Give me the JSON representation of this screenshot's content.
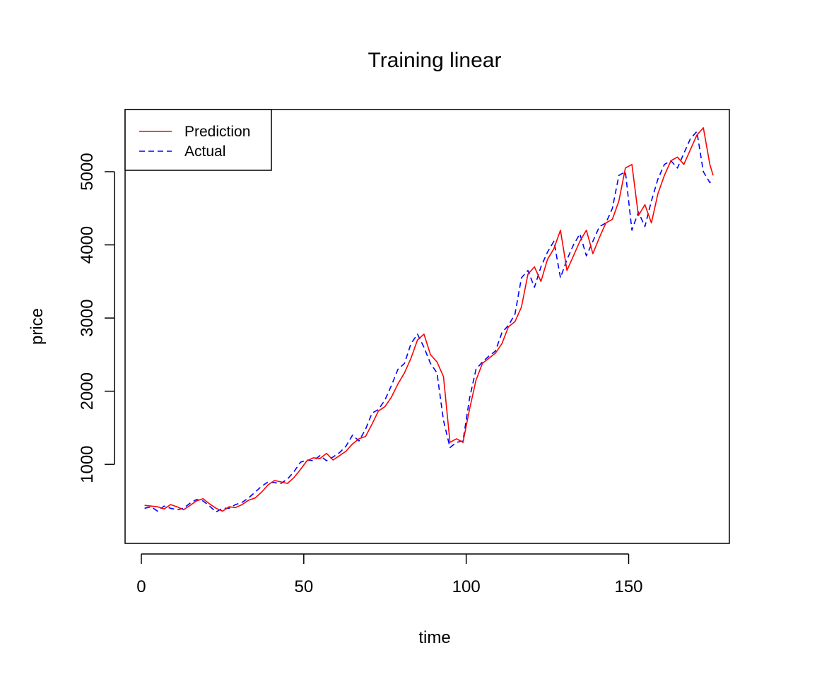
{
  "chart_data": {
    "type": "line",
    "title": "Training linear",
    "xlabel": "time",
    "ylabel": "price",
    "xlim": [
      -5,
      181
    ],
    "ylim": [
      -80,
      5850
    ],
    "xticks": [
      0,
      50,
      100,
      150
    ],
    "yticks": [
      1000,
      2000,
      3000,
      4000,
      5000
    ],
    "legend_position": "top-left",
    "grid": false,
    "series": [
      {
        "name": "Prediction",
        "color": "#ff0000",
        "style": "solid",
        "x": [
          1,
          3,
          5,
          7,
          9,
          11,
          13,
          15,
          17,
          19,
          21,
          23,
          25,
          27,
          29,
          31,
          33,
          35,
          37,
          39,
          41,
          43,
          45,
          47,
          49,
          51,
          53,
          55,
          57,
          59,
          61,
          63,
          65,
          67,
          69,
          71,
          73,
          75,
          77,
          79,
          81,
          83,
          85,
          87,
          89,
          91,
          93,
          95,
          97,
          99,
          101,
          103,
          105,
          107,
          109,
          111,
          113,
          115,
          117,
          119,
          121,
          123,
          125,
          127,
          129,
          131,
          133,
          135,
          137,
          139,
          141,
          143,
          145,
          147,
          149,
          151,
          153,
          155,
          157,
          159,
          161,
          163,
          165,
          167,
          169,
          171,
          173,
          175,
          176
        ],
        "values": [
          440,
          430,
          420,
          390,
          450,
          420,
          380,
          440,
          500,
          530,
          460,
          400,
          360,
          420,
          410,
          450,
          510,
          540,
          620,
          720,
          780,
          760,
          740,
          820,
          930,
          1050,
          1090,
          1080,
          1150,
          1060,
          1120,
          1180,
          1280,
          1350,
          1380,
          1550,
          1730,
          1790,
          1920,
          2100,
          2250,
          2450,
          2700,
          2780,
          2500,
          2400,
          2200,
          1300,
          1350,
          1300,
          1750,
          2150,
          2380,
          2450,
          2520,
          2650,
          2880,
          2950,
          3150,
          3600,
          3700,
          3500,
          3800,
          3950,
          4200,
          3650,
          3850,
          4050,
          4200,
          3880,
          4100,
          4300,
          4350,
          4600,
          5050,
          5100,
          4400,
          4550,
          4300,
          4700,
          4950,
          5150,
          5200,
          5100,
          5300,
          5500,
          5600,
          5100,
          4950
        ]
      },
      {
        "name": "Actual",
        "color": "#0000ff",
        "style": "dashed",
        "x": [
          1,
          3,
          5,
          7,
          9,
          11,
          13,
          15,
          17,
          19,
          21,
          23,
          25,
          27,
          29,
          31,
          33,
          35,
          37,
          39,
          41,
          43,
          45,
          47,
          49,
          51,
          53,
          55,
          57,
          59,
          61,
          63,
          65,
          67,
          69,
          71,
          73,
          75,
          77,
          79,
          81,
          83,
          85,
          87,
          89,
          91,
          93,
          95,
          97,
          99,
          101,
          103,
          105,
          107,
          109,
          111,
          113,
          115,
          117,
          119,
          121,
          123,
          125,
          127,
          129,
          131,
          133,
          135,
          137,
          139,
          141,
          143,
          145,
          147,
          149,
          151,
          153,
          155,
          157,
          159,
          161,
          163,
          165,
          167,
          169,
          171,
          173,
          175,
          176
        ],
        "values": [
          400,
          420,
          360,
          430,
          400,
          380,
          400,
          470,
          520,
          500,
          430,
          350,
          400,
          400,
          450,
          480,
          540,
          620,
          700,
          760,
          750,
          740,
          800,
          900,
          1030,
          1060,
          1050,
          1120,
          1050,
          1100,
          1160,
          1250,
          1400,
          1320,
          1480,
          1700,
          1750,
          1880,
          2080,
          2300,
          2380,
          2650,
          2780,
          2600,
          2380,
          2250,
          1600,
          1230,
          1300,
          1320,
          1900,
          2300,
          2400,
          2480,
          2550,
          2800,
          2900,
          3050,
          3550,
          3650,
          3420,
          3700,
          3900,
          4050,
          3550,
          3800,
          4000,
          4150,
          3850,
          4050,
          4250,
          4300,
          4500,
          4950,
          5000,
          4200,
          4450,
          4250,
          4600,
          4900,
          5100,
          5150,
          5050,
          5250,
          5450,
          5550,
          5000,
          4850,
          4900
        ]
      }
    ]
  }
}
